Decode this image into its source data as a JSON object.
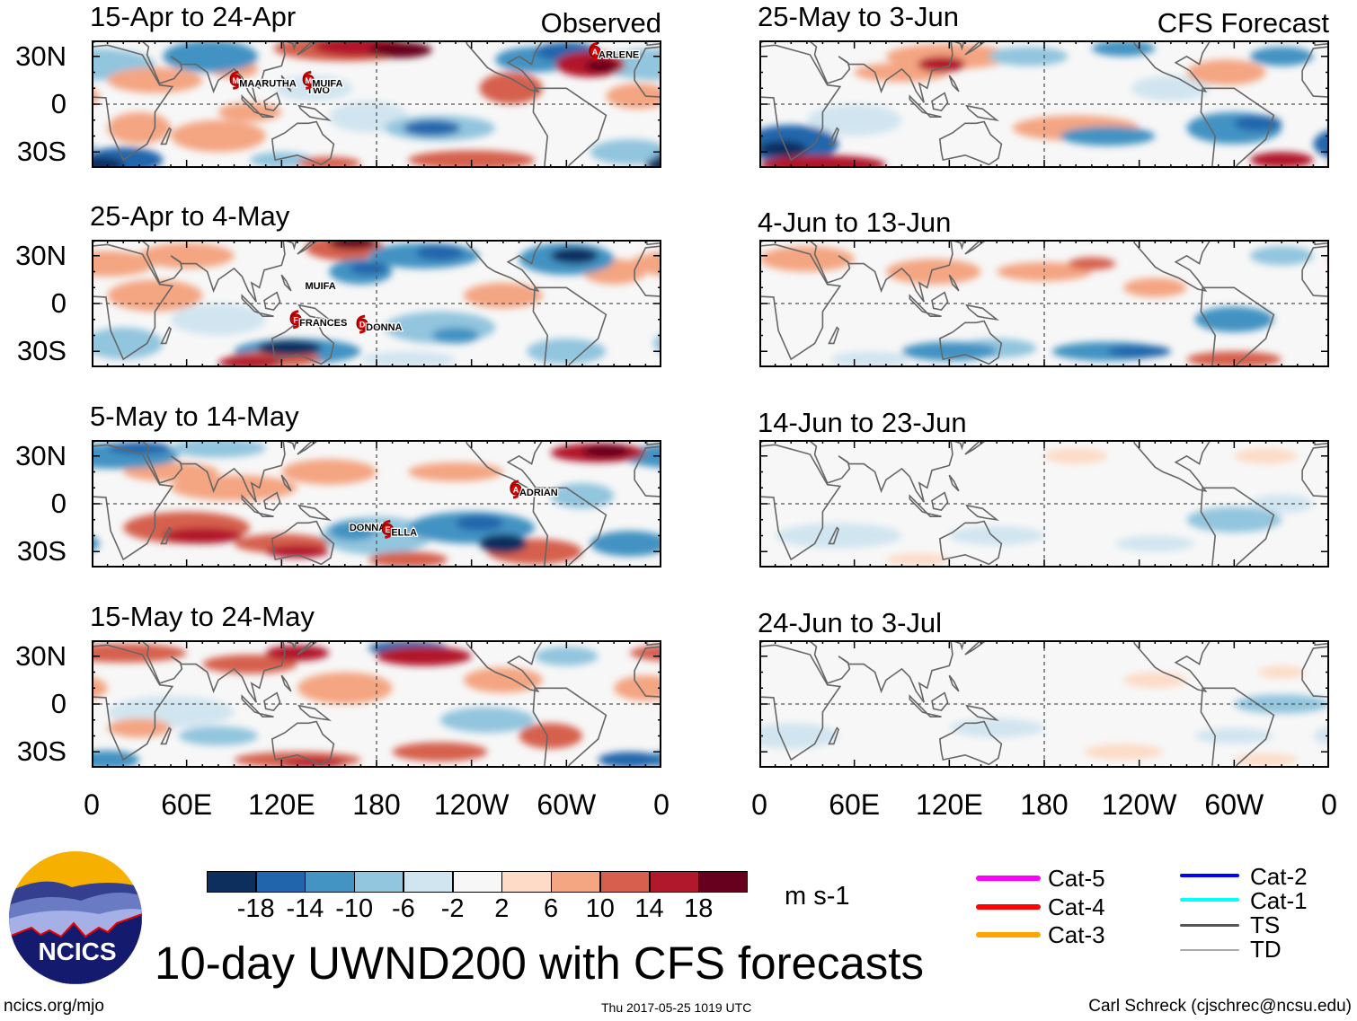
{
  "figure_title": "10-day UWND200 with CFS forecasts",
  "units": "m s-1",
  "footer": {
    "left": "ncics.org/mjo",
    "center": "Thu 2017-05-25 1019 UTC",
    "right": "Carl Schreck (cjschrec@ncsu.edu)"
  },
  "logo": {
    "text": "NCICS"
  },
  "chart_data": {
    "type": "heatmap",
    "variable": "200-hPa zonal wind anomaly",
    "x_ticks": [
      "0",
      "60E",
      "120E",
      "180",
      "120W",
      "60W",
      "0"
    ],
    "y_ticks": [
      "30N",
      "0",
      "30S"
    ],
    "lon_range": [
      0,
      360
    ],
    "lat_range": [
      -40,
      40
    ],
    "columns": [
      "Observed",
      "CFS Forecast"
    ],
    "panels": [
      {
        "title": "15-Apr to 24-Apr",
        "label": "Observed",
        "storms": [
          {
            "name": "MAARUTHA",
            "letter": "M",
            "lon": 91,
            "lat": 15
          },
          {
            "name": "TWO",
            "letter": "",
            "lon": 137,
            "lat": 13
          },
          {
            "name": "MUIFA",
            "letter": "M",
            "lon": 137,
            "lat": 15
          },
          {
            "name": "ARLENE",
            "letter": "A",
            "lon": 318,
            "lat": 33
          }
        ]
      },
      {
        "title": "25-Apr to 4-May",
        "label": "",
        "storms": [
          {
            "name": "MUIFA",
            "letter": "",
            "lon": 136,
            "lat": 9
          },
          {
            "name": "FRANCES",
            "letter": "F",
            "lon": 129,
            "lat": -10
          },
          {
            "name": "DONNA",
            "letter": "D",
            "lon": 171,
            "lat": -13
          }
        ]
      },
      {
        "title": "5-May to 14-May",
        "label": "",
        "storms": [
          {
            "name": "ADRIAN",
            "letter": "A",
            "lon": 268,
            "lat": 9
          },
          {
            "name": "DONNA",
            "letter": "",
            "lon": 164,
            "lat": -17
          },
          {
            "name": "ELLA",
            "letter": "E",
            "lon": 187,
            "lat": -16
          }
        ]
      },
      {
        "title": "15-May to 24-May",
        "label": "",
        "storms": []
      },
      {
        "title": "25-May to 3-Jun",
        "label": "CFS Forecast",
        "storms": []
      },
      {
        "title": "4-Jun to 13-Jun",
        "label": "",
        "storms": []
      },
      {
        "title": "14-Jun to 23-Jun",
        "label": "",
        "storms": []
      },
      {
        "title": "24-Jun to 3-Jul",
        "label": "",
        "storms": []
      }
    ],
    "colorbar": {
      "labels": [
        "-18",
        "-14",
        "-10",
        "-6",
        "-2",
        "2",
        "6",
        "10",
        "14",
        "18"
      ],
      "colors": [
        "#0c2f5e",
        "#2166ac",
        "#4393c3",
        "#92c5de",
        "#d1e5f0",
        "#f7f7f7",
        "#fddbc7",
        "#f4a582",
        "#d6604d",
        "#b2182b",
        "#67001f"
      ]
    },
    "legend": [
      {
        "label": "Cat-5",
        "color": "#ff00ff"
      },
      {
        "label": "Cat-4",
        "color": "#ff0000"
      },
      {
        "label": "Cat-3",
        "color": "#ffa500"
      },
      {
        "label": "Cat-2",
        "color": "#0000ff"
      },
      {
        "label": "Cat-1",
        "color": "#00ffff"
      },
      {
        "label": "TS",
        "color": "#555555"
      },
      {
        "label": "TD",
        "color": "#aaaaaa"
      }
    ]
  }
}
